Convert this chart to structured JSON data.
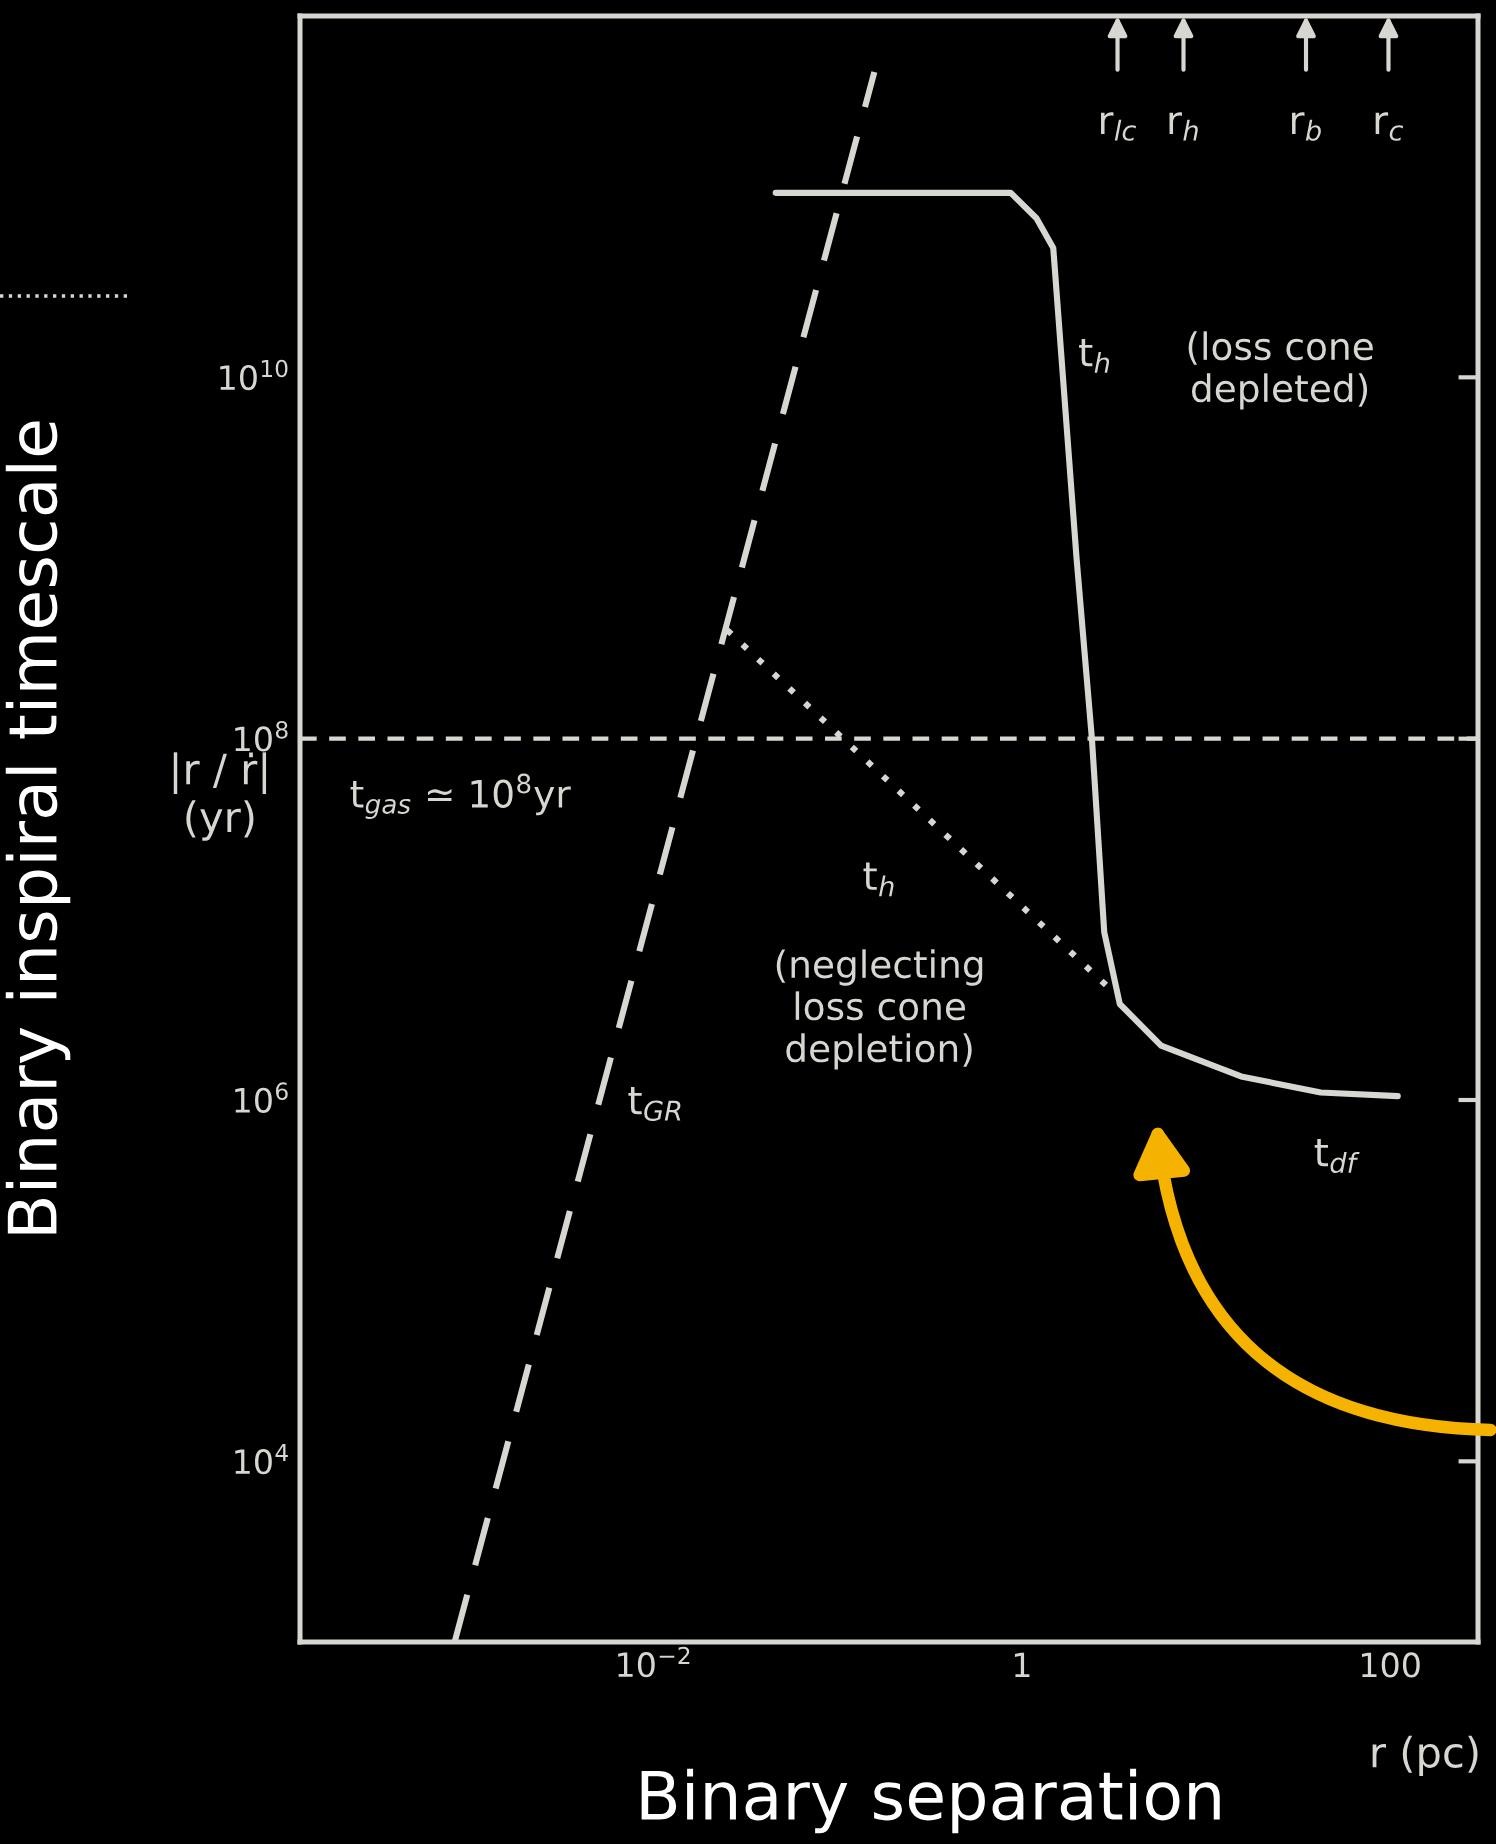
{
  "chart_data": {
    "type": "line",
    "xlabel": "Binary separation",
    "ylabel": "Binary inspiral timescale",
    "log": "xy",
    "grid": false,
    "xlim": [
      0.00012,
      300
    ],
    "ylim": [
      1000,
      1000000000000.0
    ],
    "xticks": [
      {
        "value": 0.01,
        "label": "10$^{−2}$"
      },
      1,
      100
    ],
    "yticks": [
      {
        "value": 10000,
        "label": "10$^{4}$"
      },
      {
        "value": 1000000,
        "label": "10$^{6}$"
      },
      {
        "value": 100000000,
        "label": "10$^{8}$"
      },
      {
        "value": 10000000000,
        "label": "10$^{10}$"
      }
    ],
    "series": [
      {
        "color": "#d8d6d0",
        "line_style": "dashed",
        "x": [
          0.00083,
          0.158
        ],
        "values": [
          1000,
          490000000000
        ]
      },
      {
        "color": "#d8d6d0",
        "line_style": "solid",
        "x": [
          0.046,
          0.87,
          1.2,
          1.48,
          1.98,
          2.4,
          2.8,
          3.4,
          5.7,
          15.5,
          42,
          110
        ],
        "values": [
          105000000000,
          105000000000,
          76000000000,
          52000000000,
          1000000000,
          100000000,
          8500000,
          3400000,
          2000000,
          1350000,
          1100000,
          1050000
        ]
      },
      {
        "color": "#d8d6d0",
        "line_style": "dotted",
        "x": [
          0.025,
          2.95
        ],
        "values": [
          400000000,
          4200000
        ]
      }
    ],
    "ref_lines": [
      {
        "axis": "y",
        "value": 100000000,
        "color": "#d8d6d0",
        "line_style": "dashed"
      }
    ],
    "annotations": [
      "|r / ṙ|\n(yr)",
      "r (pc)",
      "(loss cone\ndepleted)",
      "(neglecting\nloss cone\ndepletion)",
      "r$_{lc}$",
      "r$_{h}$",
      "r$_{b}$",
      "r$_{c}$",
      "t$_{h}$",
      "t$_{gas}$ ≃ 10$^{8}$yr",
      "t$_{h}$",
      "t$_{GR}$",
      "t$_{df}$"
    ]
  }
}
